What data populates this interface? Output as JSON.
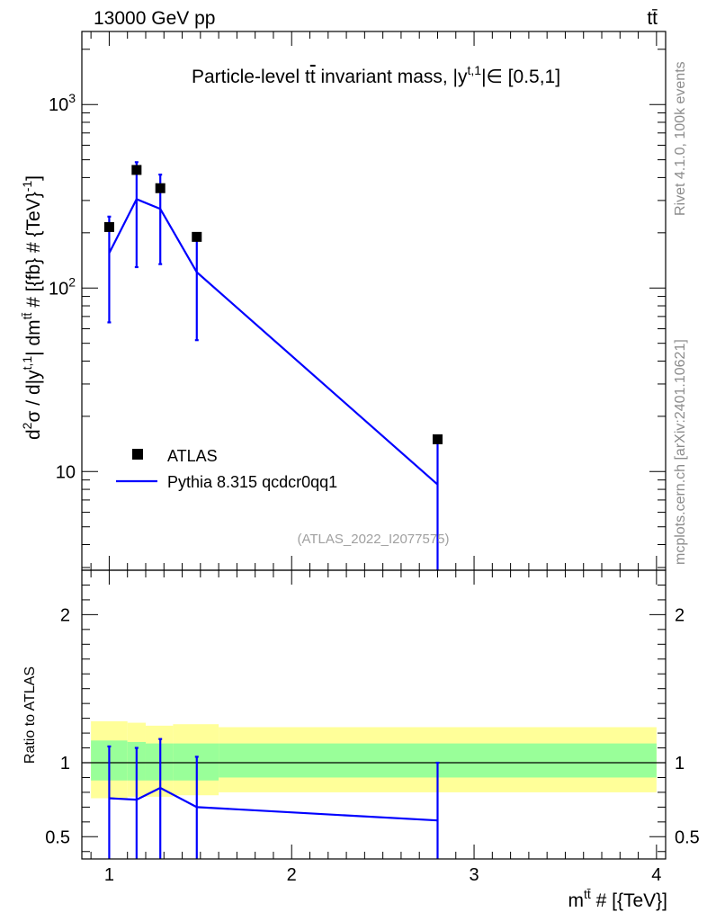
{
  "chart_data": {
    "type": "scatter",
    "header_left": "13000 GeV pp",
    "header_right": "tt̄",
    "title": "Particle-level tt̄ invariant mass, |y^{t,1}| ∈ [0.5,1]",
    "title_main": "Particle-level t",
    "title_tbar": "t",
    "title_mid": " invariant mass, |y",
    "title_sup": "t,1",
    "title_end": "|∈ [0.5,1]",
    "ylabel": "d²σ / d|y^{t,1}| dm^{tt̄} # [{fb} # {TeV}^{-1}]",
    "ylabel_parts": {
      "d": "d",
      "sup2": "2",
      "mid1": "σ / d|y",
      "supt1": "t,1",
      "mid2": "| dm",
      "suptt": "tt̄",
      "end": " # [{fb} # {TeV}",
      "supm1": "-1",
      "close": "]"
    },
    "xlabel": "m^{tt̄} # [{TeV}]",
    "xlabel_parts": {
      "m": "m",
      "sup": "tt̄",
      "rest": " # [{TeV}]"
    },
    "ratio_ylabel": "Ratio to ATLAS",
    "right_label_top": "Rivet 4.1.0,  100k events",
    "right_label_bottom": "mcplots.cern.ch [arXiv:2401.10621]",
    "watermark": "(ATLAS_2022_I2077575)",
    "xlim": [
      0.85,
      4.05
    ],
    "ylim_log": [
      2.9,
      2500
    ],
    "ratio_ylim": [
      0.35,
      2.3
    ],
    "x_ticks": [
      {
        "v": 1,
        "label": "1"
      },
      {
        "v": 2,
        "label": "2"
      },
      {
        "v": 3,
        "label": "3"
      },
      {
        "v": 4,
        "label": "4"
      }
    ],
    "y_ticks": [
      {
        "v": 10,
        "base": "10",
        "exp": ""
      },
      {
        "v": 100,
        "base": "10",
        "exp": "2"
      },
      {
        "v": 1000,
        "base": "10",
        "exp": "3"
      }
    ],
    "ratio_ticks": [
      {
        "v": 0.5,
        "label": "0.5"
      },
      {
        "v": 1,
        "label": "1"
      },
      {
        "v": 2,
        "label": "2"
      }
    ],
    "legend": [
      {
        "name": "ATLAS",
        "marker": "square",
        "color": "#000000"
      },
      {
        "name": "Pythia 8.315 qcdcr0qq1",
        "marker": "line",
        "color": "#0000ff"
      }
    ],
    "data": {
      "name": "ATLAS",
      "x": [
        1.0,
        1.15,
        1.28,
        1.48,
        2.8
      ],
      "y": [
        215,
        440,
        350,
        190,
        15
      ],
      "bins": [
        [
          0.9,
          1.1
        ],
        [
          1.1,
          1.2
        ],
        [
          1.2,
          1.35
        ],
        [
          1.35,
          1.6
        ],
        [
          1.6,
          4.0
        ]
      ]
    },
    "mc": {
      "name": "Pythia 8.315 qcdcr0qq1",
      "color": "#0000ff",
      "x": [
        1.0,
        1.15,
        1.28,
        1.48,
        2.8
      ],
      "y": [
        155,
        305,
        270,
        122,
        8.5
      ],
      "yerr_low": [
        65,
        130,
        135,
        52,
        2.9
      ],
      "yerr_high": [
        245,
        485,
        415,
        185,
        15.5
      ],
      "ratio": [
        0.76,
        0.75,
        0.83,
        0.7,
        0.61
      ],
      "ratio_err_low": [
        0.3,
        0.3,
        0.3,
        0.3,
        0.3
      ],
      "ratio_err_high": [
        1.11,
        1.1,
        1.16,
        1.04,
        1.0
      ]
    },
    "bands": {
      "yellow_color": "#ffff99",
      "green_color": "#99ff99",
      "yellow": [
        [
          0.76,
          1.28
        ],
        [
          0.77,
          1.27
        ],
        [
          0.77,
          1.25
        ],
        [
          0.78,
          1.26
        ],
        [
          0.8,
          1.24
        ]
      ],
      "green": [
        [
          0.88,
          1.15
        ],
        [
          0.88,
          1.14
        ],
        [
          0.88,
          1.13
        ],
        [
          0.88,
          1.13
        ],
        [
          0.9,
          1.13
        ]
      ]
    }
  }
}
